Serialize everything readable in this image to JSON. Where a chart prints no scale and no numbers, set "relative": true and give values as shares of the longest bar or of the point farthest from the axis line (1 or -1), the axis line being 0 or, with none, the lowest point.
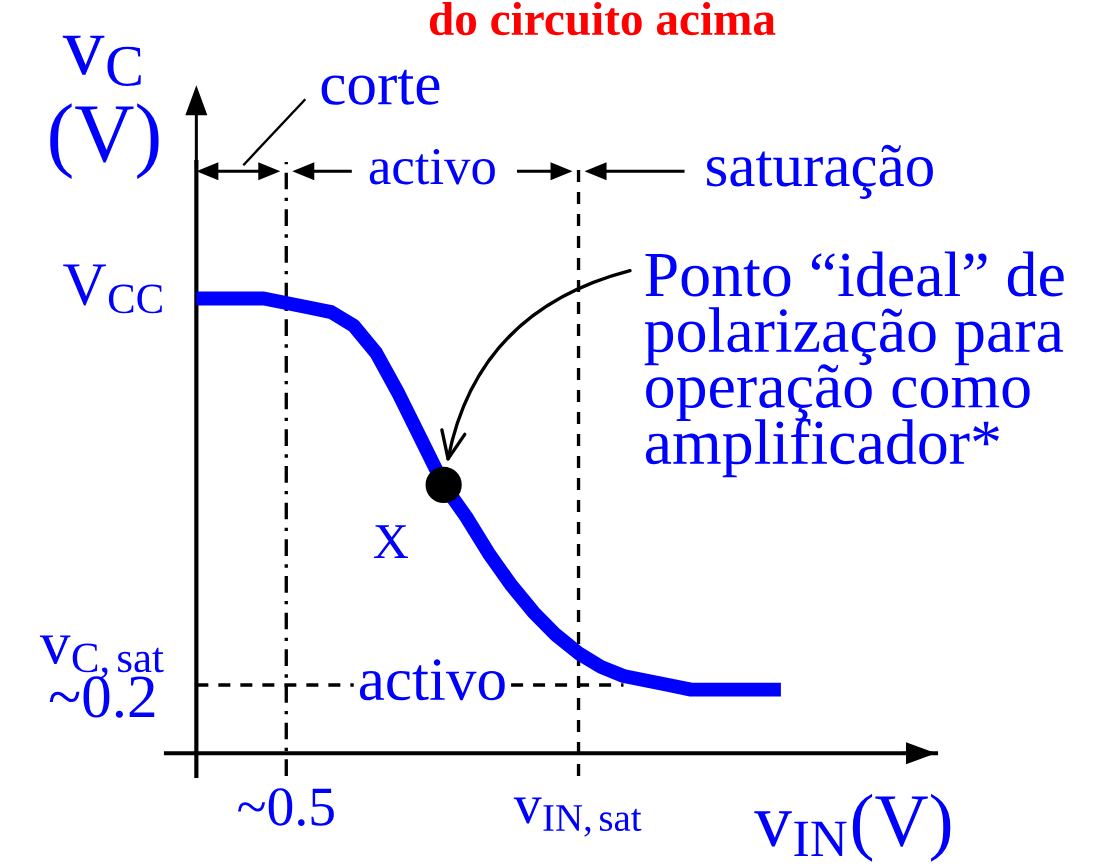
{
  "chart_data": {
    "type": "line",
    "title": "do circuito acima",
    "xlabel": "v$_{IN}$(V)",
    "ylabel": "v$_{C}$\n(V)",
    "relative": true,
    "categories": [
      null,
      null,
      null,
      null,
      "~0.5",
      null,
      null,
      null,
      null,
      null,
      null,
      null,
      null,
      null,
      null,
      null,
      null,
      "v$_{IN,sat}$",
      null,
      null,
      null,
      null,
      null,
      null,
      null,
      null,
      null,
      null,
      null,
      null,
      null,
      null,
      null
    ],
    "series": [
      {
        "color": "#0000ff",
        "values": [
          1,
          1,
          1,
          1,
          0.99,
          0.98,
          0.97,
          0.94,
          0.88,
          0.79,
          0.69,
          0.59,
          0.52,
          0.44,
          0.37,
          0.31,
          0.26,
          0.22,
          0.19,
          0.17,
          0.16,
          0.15,
          0.14,
          0.14,
          0.14,
          0.14,
          0.14,
          null,
          null,
          null,
          null,
          null,
          null
        ]
      },
      {
        "color": "#000000",
        "line_style": "dashed",
        "values": [
          0.15,
          0.15,
          0.15,
          0.15,
          0.15,
          0.15,
          0.15,
          0.15,
          null,
          null,
          null,
          null,
          null,
          null,
          0.15,
          0.15,
          0.15,
          0.15,
          0.15,
          0.15,
          null,
          null,
          null,
          null,
          null,
          null,
          null,
          null,
          null,
          null,
          null,
          null,
          null
        ]
      },
      {
        "type": "scatter",
        "name": "X",
        "color": "#000000",
        "marker": "circle",
        "values": [
          null,
          null,
          null,
          null,
          null,
          null,
          null,
          null,
          null,
          null,
          null,
          0.59,
          null,
          null,
          null,
          null,
          null,
          null,
          null,
          null,
          null,
          null,
          null,
          null,
          null,
          null,
          null,
          null,
          null,
          null,
          null,
          null,
          null
        ]
      }
    ],
    "ref_lines": [
      {
        "axis": "x",
        "value": "~0.5",
        "color": "#000000",
        "line_style": "dashdot"
      },
      {
        "axis": "x",
        "value": "v$_{IN,sat}$",
        "color": "#000000",
        "line_style": "dashed"
      }
    ],
    "annotations": [
      "corte",
      "activo",
      "saturação",
      "V$_{CC}$",
      "v$_{C,sat}$\n~0.2",
      "activo",
      "Ponto “ideal” de\npolarização para\noperação como\namplificador*"
    ]
  }
}
